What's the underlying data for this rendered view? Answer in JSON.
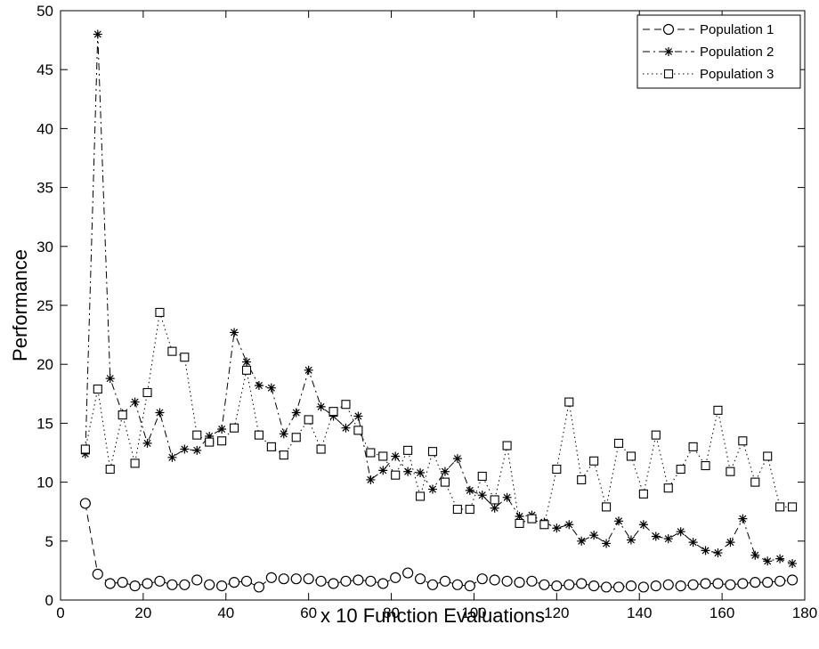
{
  "chart_data": {
    "type": "line",
    "title": "",
    "xlabel": "x 10 Function Evaluations",
    "ylabel": "Performance",
    "xlim": [
      0,
      180
    ],
    "ylim": [
      0,
      50
    ],
    "xticks": [
      0,
      20,
      40,
      60,
      80,
      100,
      120,
      140,
      160,
      180
    ],
    "yticks": [
      0,
      5,
      10,
      15,
      20,
      25,
      30,
      35,
      40,
      45,
      50
    ],
    "grid": false,
    "legend_position": "top-right",
    "x": [
      6,
      9,
      12,
      15,
      18,
      21,
      24,
      27,
      30,
      33,
      36,
      39,
      42,
      45,
      48,
      51,
      54,
      57,
      60,
      63,
      66,
      69,
      72,
      75,
      78,
      81,
      84,
      87,
      90,
      93,
      96,
      99,
      102,
      105,
      108,
      111,
      114,
      117,
      120,
      123,
      126,
      129,
      132,
      135,
      138,
      141,
      144,
      147,
      150,
      153,
      156,
      159,
      162,
      165,
      168,
      171,
      174,
      177
    ],
    "series": [
      {
        "name": "Population 1",
        "color": "#000000",
        "line_style": "dashed",
        "marker": "circle",
        "values": [
          8.2,
          2.2,
          1.4,
          1.5,
          1.2,
          1.4,
          1.6,
          1.3,
          1.3,
          1.7,
          1.3,
          1.2,
          1.5,
          1.6,
          1.1,
          1.9,
          1.8,
          1.8,
          1.8,
          1.6,
          1.4,
          1.6,
          1.7,
          1.6,
          1.4,
          1.9,
          2.3,
          1.8,
          1.3,
          1.6,
          1.3,
          1.2,
          1.8,
          1.7,
          1.6,
          1.5,
          1.6,
          1.3,
          1.2,
          1.3,
          1.4,
          1.2,
          1.1,
          1.1,
          1.2,
          1.1,
          1.2,
          1.3,
          1.2,
          1.3,
          1.4,
          1.4,
          1.3,
          1.4,
          1.5,
          1.5,
          1.6,
          1.7
        ]
      },
      {
        "name": "Population 2",
        "color": "#000000",
        "line_style": "dashdot",
        "marker": "star",
        "values": [
          12.4,
          48.0,
          18.8,
          15.8,
          16.8,
          13.3,
          15.9,
          12.1,
          12.8,
          12.7,
          13.9,
          14.5,
          22.7,
          20.2,
          18.2,
          18.0,
          14.1,
          15.9,
          19.5,
          16.4,
          15.6,
          14.6,
          15.6,
          10.2,
          11.0,
          12.2,
          10.9,
          10.8,
          9.4,
          10.9,
          12.0,
          9.3,
          8.9,
          7.8,
          8.7,
          7.1,
          7.2,
          6.6,
          6.1,
          6.4,
          5.0,
          5.5,
          4.8,
          6.7,
          5.1,
          6.4,
          5.4,
          5.2,
          5.8,
          4.9,
          4.2,
          4.0,
          4.9,
          6.9,
          3.8,
          3.3,
          3.5,
          3.1
        ]
      },
      {
        "name": "Population 3",
        "color": "#000000",
        "line_style": "dotted",
        "marker": "square",
        "values": [
          12.8,
          17.9,
          11.1,
          15.7,
          11.6,
          17.6,
          24.4,
          21.1,
          20.6,
          14.0,
          13.4,
          13.5,
          14.6,
          19.5,
          14.0,
          13.0,
          12.3,
          13.8,
          15.3,
          12.8,
          16.0,
          16.6,
          14.4,
          12.5,
          12.2,
          10.6,
          12.7,
          8.8,
          12.6,
          10.0,
          7.7,
          7.7,
          10.5,
          8.5,
          13.1,
          6.5,
          6.9,
          6.4,
          11.1,
          16.8,
          10.2,
          11.8,
          7.9,
          13.3,
          12.2,
          9.0,
          14.0,
          9.5,
          11.1,
          13.0,
          11.4,
          16.1,
          10.9,
          13.5,
          10.0,
          12.2,
          7.9,
          7.9
        ]
      }
    ]
  }
}
